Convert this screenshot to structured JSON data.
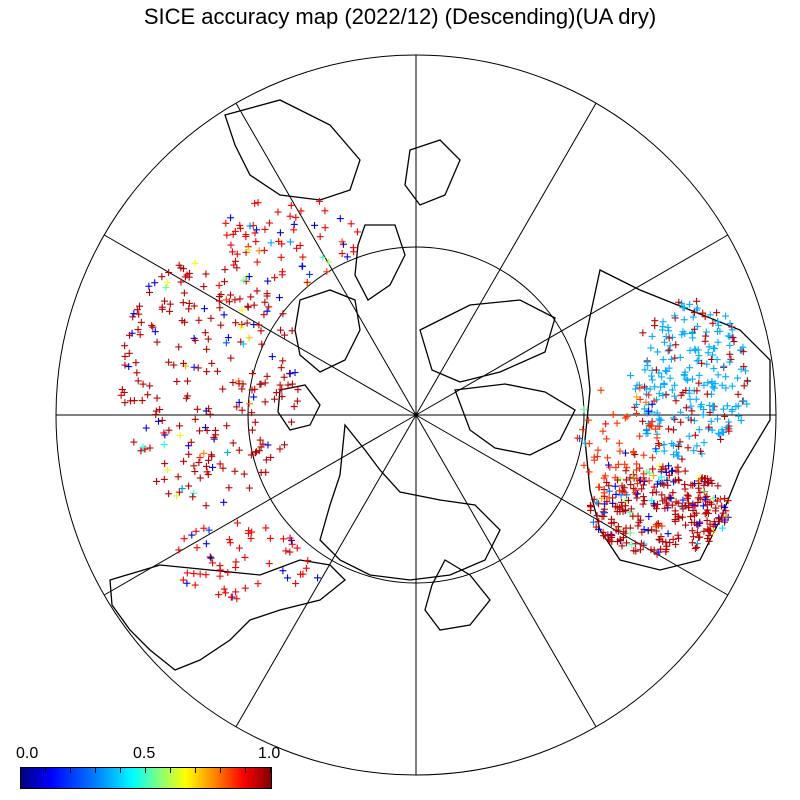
{
  "title": "SICE accuracy map (2022/12) (Descending)(UA dry)",
  "projection": "north-polar-stereographic",
  "graticule": {
    "meridian_count": 12,
    "parallel_circles": 1
  },
  "colors": {
    "low": "#00007f",
    "mid": "#00ffff",
    "high": "#7f0000",
    "land_outline": "#000000"
  },
  "colorbar": {
    "min_label": "0.0",
    "mid_label": "0.5",
    "max_label": "1.0",
    "range": [
      0.0,
      1.0
    ]
  },
  "marker_symbol": "+"
}
